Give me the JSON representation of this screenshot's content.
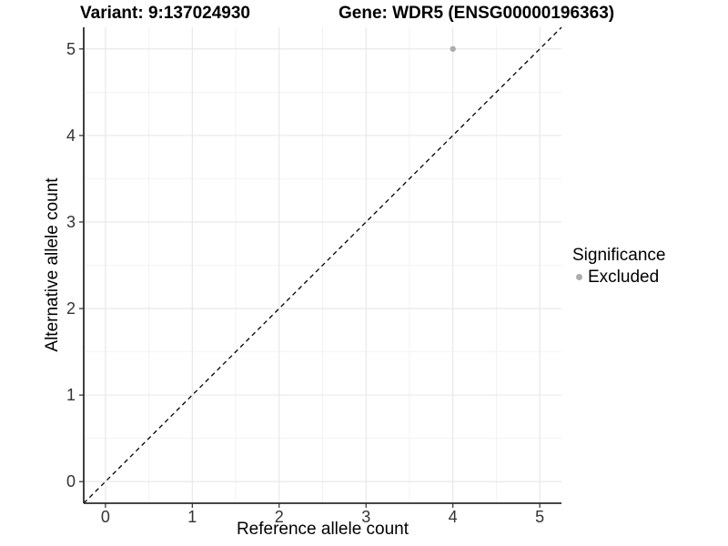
{
  "chart_data": {
    "type": "scatter",
    "title_left": "Variant: 9:137024930",
    "title_right": "Gene: WDR5 (ENSG00000196363)",
    "xlabel": "Reference allele count",
    "ylabel": "Alternative allele count",
    "xticks": [
      0,
      1,
      2,
      3,
      4,
      5
    ],
    "yticks": [
      0,
      1,
      2,
      3,
      4,
      5
    ],
    "minor_xticks": [
      0.5,
      1.5,
      2.5,
      3.5,
      4.5
    ],
    "minor_yticks": [
      0.5,
      1.5,
      2.5,
      3.5,
      4.5
    ],
    "xlim": [
      -0.25,
      5.25
    ],
    "ylim": [
      -0.25,
      5.25
    ],
    "grid": true,
    "legend_position": "right",
    "series": [
      {
        "name": "Excluded",
        "color": "#acacac",
        "points": [
          {
            "x": 4,
            "y": 5
          }
        ]
      }
    ],
    "reference_line": {
      "slope": 1,
      "intercept": 0,
      "style": "dashed",
      "color": "#000000"
    },
    "legend": {
      "title": "Significance",
      "items": [
        {
          "label": "Excluded",
          "color": "#acacac"
        }
      ]
    },
    "colors": {
      "grid_major": "#e6e6e6",
      "grid_minor": "#f2f2f2",
      "axis_line": "#2b2b2b",
      "tick_text": "#333333",
      "panel_background": "#ffffff"
    }
  }
}
